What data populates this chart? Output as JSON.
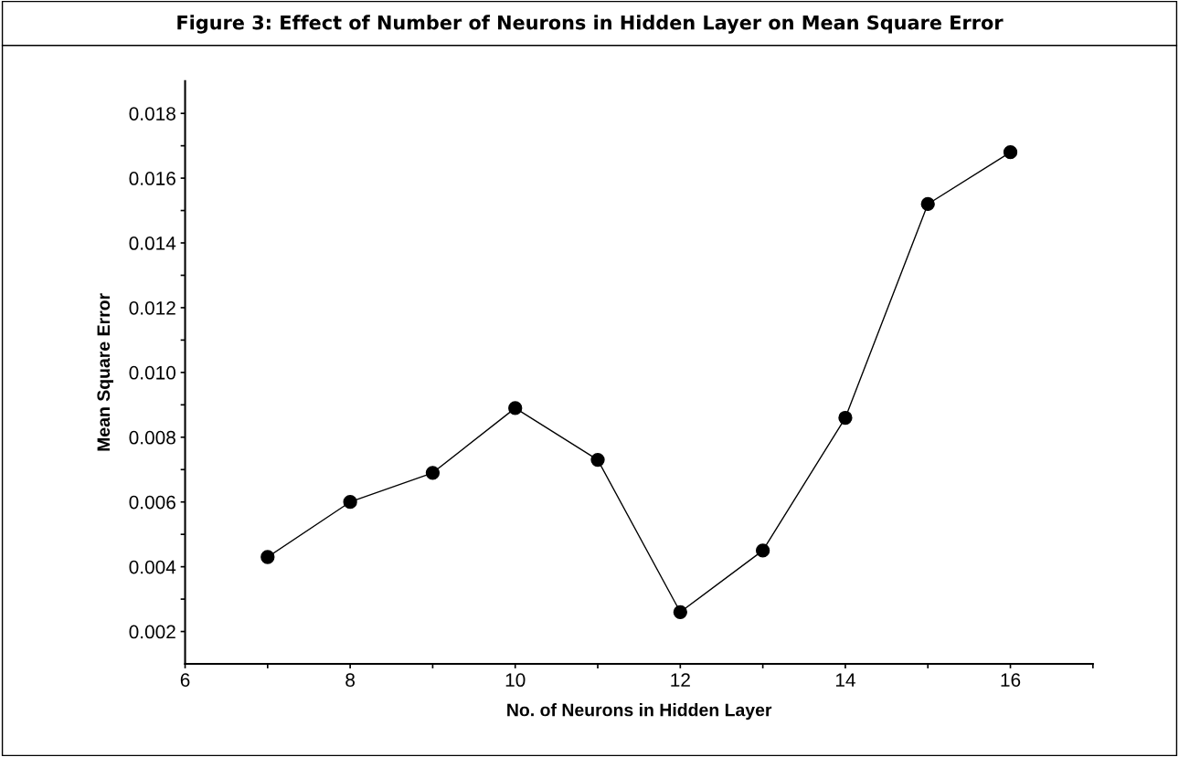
{
  "chart_data": {
    "type": "line",
    "title": "Figure 3: Effect of Number of Neurons in Hidden Layer on Mean Square Error",
    "xlabel": "No. of Neurons in Hidden Layer",
    "ylabel": "Mean Square Error",
    "x": [
      7,
      8,
      9,
      10,
      11,
      12,
      13,
      14,
      15,
      16
    ],
    "series": [
      {
        "color": "#000000",
        "values": [
          0.0043,
          0.006,
          0.0069,
          0.0089,
          0.0073,
          0.0026,
          0.0045,
          0.0086,
          0.0152,
          0.0168
        ]
      }
    ],
    "marker": "circle",
    "line_style": "solid",
    "grid": false,
    "legend": false,
    "xlim": [
      6,
      17
    ],
    "xticks": [
      6,
      {
        "value": 7,
        "label": null
      },
      8,
      {
        "value": 9,
        "label": null
      },
      10,
      {
        "value": 11,
        "label": null
      },
      12,
      {
        "value": 13,
        "label": null
      },
      14,
      {
        "value": 15,
        "label": null
      },
      16,
      {
        "value": 17,
        "label": null
      }
    ],
    "ylim": [
      0.001,
      0.019
    ],
    "yticks": [
      0.002,
      {
        "value": 0.003,
        "label": null
      },
      0.004,
      {
        "value": 0.005,
        "label": null
      },
      0.006,
      {
        "value": 0.007,
        "label": null
      },
      0.008,
      {
        "value": 0.009,
        "label": null
      },
      {
        "value": 0.01,
        "label": "0.010"
      },
      {
        "value": 0.011,
        "label": null
      },
      0.012,
      {
        "value": 0.013,
        "label": null
      },
      0.014,
      {
        "value": 0.015,
        "label": null
      },
      0.016,
      {
        "value": 0.017,
        "label": null
      },
      0.018
    ]
  }
}
